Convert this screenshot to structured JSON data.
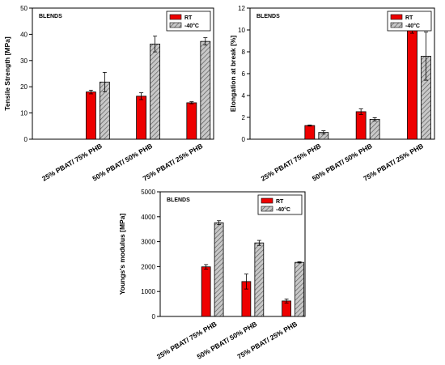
{
  "colors": {
    "rt": "#ee0000",
    "cold": "#c8c8c8",
    "hatch": "#555555",
    "frame": "#000000"
  },
  "chart_data": [
    {
      "type": "bar",
      "ylabel": "Tensile Strength [MPa]",
      "annotation": "BLENDS",
      "categories": [
        "25% PBAT/ 75% PHB",
        "50% PBAT/ 50% PHB",
        "75% PBAT/ 25% PHB"
      ],
      "ylim": [
        0,
        50
      ],
      "yticks": [
        0,
        10,
        20,
        30,
        40,
        50
      ],
      "legend_position": "top-right",
      "series": [
        {
          "name": "RT",
          "values": [
            18.0,
            16.4,
            13.9
          ],
          "errors": [
            0.7,
            1.3,
            0.4
          ]
        },
        {
          "name": "-40°C",
          "values": [
            21.8,
            36.3,
            37.3
          ],
          "errors": [
            3.7,
            3.0,
            1.4
          ]
        }
      ]
    },
    {
      "type": "bar",
      "ylabel": "Elongation at break [%]",
      "annotation": "BLENDS",
      "categories": [
        "25% PBAT/ 75% PHB",
        "50% PBAT/ 50% PHB",
        "75% PBAT/ 25% PHB"
      ],
      "ylim": [
        0,
        12
      ],
      "yticks": [
        0,
        2,
        4,
        6,
        8,
        10,
        12
      ],
      "legend_position": "top-right",
      "series": [
        {
          "name": "RT",
          "values": [
            1.25,
            2.52,
            10.25
          ],
          "errors": [
            0.05,
            0.25,
            0.55
          ]
        },
        {
          "name": "-40°C",
          "values": [
            0.62,
            1.82,
            7.6
          ],
          "errors": [
            0.15,
            0.15,
            2.2
          ]
        }
      ]
    },
    {
      "type": "bar",
      "ylabel": "Youngs's modulus [MPa]",
      "annotation": "BLENDS",
      "categories": [
        "25% PBAT/ 75% PHB",
        "50% PBAT/ 50% PHB",
        "75% PBAT/ 25% PHB"
      ],
      "ylim": [
        0,
        5000
      ],
      "yticks": [
        0,
        1000,
        2000,
        3000,
        4000,
        5000
      ],
      "legend_position": "top-right",
      "series": [
        {
          "name": "RT",
          "values": [
            1990,
            1400,
            620
          ],
          "errors": [
            90,
            300,
            80
          ]
        },
        {
          "name": "-40°C",
          "values": [
            3760,
            2950,
            2170
          ],
          "errors": [
            80,
            100,
            25
          ]
        }
      ]
    }
  ]
}
